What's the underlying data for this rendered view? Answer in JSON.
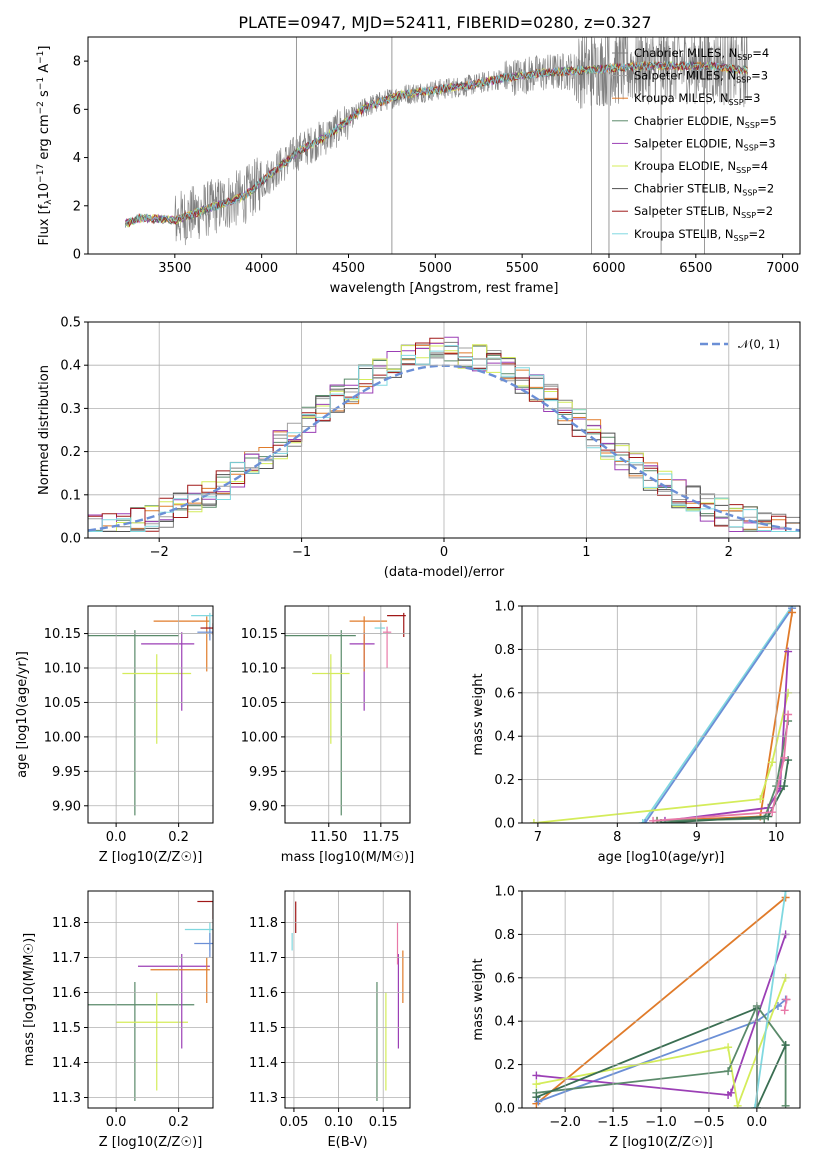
{
  "figure": {
    "title": "PLATE=0947, MJD=52411, FIBERID=0280, z=0.327"
  },
  "colors": {
    "data": "#808080",
    "models": [
      "#7f7f7f",
      "#a0a0a0",
      "#e07b2a",
      "#5a8a6a",
      "#9b3fb5",
      "#d4ec5a",
      "#505050",
      "#a01818",
      "#80d8e0",
      "#6b8fd6",
      "#e879a8",
      "#3a6e52"
    ]
  },
  "chart_data": [
    {
      "id": "spectrum",
      "type": "line",
      "title": "PLATE=0947, MJD=52411, FIBERID=0280, z=0.327",
      "xlabel": "wavelength [Angstrom, rest frame]",
      "ylabel": "Flux [f_λ 10^-17 erg cm^-2 s^-1 A^-1]",
      "xlim": [
        3000,
        7100
      ],
      "ylim": [
        0,
        9
      ],
      "xticks": [
        "3500",
        "4000",
        "4500",
        "5000",
        "5500",
        "6000",
        "6500",
        "7000"
      ],
      "yticks": [
        "0",
        "2",
        "4",
        "6",
        "8"
      ],
      "grid": false,
      "legend_position": "top-right",
      "spectrum_shape": {
        "x": [
          3200,
          3300,
          3500,
          3700,
          3900,
          4000,
          4200,
          4400,
          4600,
          4800,
          5000,
          5200,
          5400,
          5600,
          5800,
          6000,
          6200,
          6400,
          6600,
          6800
        ],
        "y": [
          1.2,
          1.5,
          1.4,
          1.9,
          2.4,
          3.0,
          4.2,
          5.0,
          6.1,
          6.6,
          6.8,
          7.0,
          7.3,
          7.5,
          7.6,
          7.7,
          7.8,
          7.8,
          7.8,
          7.6
        ]
      },
      "series": [
        {
          "name": "Chabrier MILES, N_SSP=4"
        },
        {
          "name": "Salpeter MILES, N_SSP=3"
        },
        {
          "name": "Kroupa MILES, N_SSP=3"
        },
        {
          "name": "Chabrier ELODIE, N_SSP=5"
        },
        {
          "name": "Salpeter ELODIE, N_SSP=3"
        },
        {
          "name": "Kroupa ELODIE, N_SSP=4"
        },
        {
          "name": "Chabrier STELIB, N_SSP=2"
        },
        {
          "name": "Salpeter STELIB, N_SSP=2"
        },
        {
          "name": "Kroupa STELIB, N_SSP=2"
        }
      ]
    },
    {
      "id": "residuals",
      "type": "bar",
      "xlabel": "(data-model)/error",
      "ylabel": "Normed distribution",
      "xlim": [
        -2.5,
        2.5
      ],
      "ylim": [
        0,
        0.5
      ],
      "xticks": [
        "−2",
        "−1",
        "0",
        "1",
        "2"
      ],
      "yticks": [
        "0.0",
        "0.1",
        "0.2",
        "0.3",
        "0.4",
        "0.5"
      ],
      "grid": true,
      "legend_position": "top-right",
      "legend": "𝒩(0, 1)",
      "bin_width": 0.1
    },
    {
      "id": "age-vs-Z",
      "type": "scatter",
      "xlabel": "Z [log10(Z/Z☉)]",
      "ylabel": "age  [log10(age/yr)]",
      "xlim": [
        -0.09,
        0.31
      ],
      "ylim": [
        9.875,
        10.19
      ],
      "xticks": [
        "0.0",
        "0.2"
      ],
      "yticks": [
        "9.90",
        "9.95",
        "10.00",
        "10.05",
        "10.10",
        "10.15"
      ],
      "points": [
        {
          "x": 0.06,
          "xlo": -0.09,
          "xhi": 0.2,
          "y": 10.147,
          "ylo": 9.886,
          "yhi": 10.155,
          "c": 3
        },
        {
          "x": 0.13,
          "xlo": 0.02,
          "xhi": 0.24,
          "y": 10.092,
          "ylo": 9.99,
          "yhi": 10.12,
          "c": 5
        },
        {
          "x": 0.21,
          "xlo": 0.08,
          "xhi": 0.25,
          "y": 10.135,
          "ylo": 10.038,
          "yhi": 10.152,
          "c": 4
        },
        {
          "x": 0.29,
          "xlo": 0.12,
          "xhi": 0.3,
          "y": 10.168,
          "ylo": 10.095,
          "yhi": 10.175,
          "c": 2
        },
        {
          "x": 0.3,
          "xlo": 0.24,
          "xhi": 0.31,
          "y": 10.176,
          "ylo": 10.145,
          "yhi": 10.18,
          "c": 8
        },
        {
          "x": 0.3,
          "xlo": 0.26,
          "xhi": 0.31,
          "y": 10.152,
          "ylo": 10.14,
          "yhi": 10.16,
          "c": 9
        },
        {
          "x": 0.31,
          "xlo": 0.27,
          "xhi": 0.31,
          "y": 10.158,
          "ylo": 10.148,
          "yhi": 10.165,
          "c": 7
        }
      ]
    },
    {
      "id": "age-vs-mass",
      "type": "scatter",
      "xlabel": "mass [log10(M/M☉)]",
      "ylabel": "",
      "xlim": [
        11.29,
        11.89
      ],
      "ylim": [
        9.875,
        10.19
      ],
      "xticks": [
        "11.50",
        "11.75"
      ],
      "yticks": [
        "9.90",
        "9.95",
        "10.00",
        "10.05",
        "10.10",
        "10.15"
      ],
      "points": [
        {
          "x": 11.56,
          "xlo": 11.29,
          "xhi": 11.63,
          "y": 10.147,
          "ylo": 9.886,
          "yhi": 10.155,
          "c": 3
        },
        {
          "x": 11.51,
          "xlo": 11.42,
          "xhi": 11.6,
          "y": 10.092,
          "ylo": 9.99,
          "yhi": 10.12,
          "c": 5
        },
        {
          "x": 11.67,
          "xlo": 11.6,
          "xhi": 11.72,
          "y": 10.135,
          "ylo": 10.038,
          "yhi": 10.152,
          "c": 4
        },
        {
          "x": 11.67,
          "xlo": 11.6,
          "xhi": 11.78,
          "y": 10.168,
          "ylo": 10.095,
          "yhi": 10.175,
          "c": 2
        },
        {
          "x": 11.86,
          "xlo": 11.78,
          "xhi": 11.87,
          "y": 10.176,
          "ylo": 10.145,
          "yhi": 10.18,
          "c": 7
        },
        {
          "x": 11.78,
          "xlo": 11.76,
          "xhi": 11.8,
          "y": 10.152,
          "ylo": 10.1,
          "yhi": 10.16,
          "c": 10
        },
        {
          "x": 11.75,
          "xlo": 11.72,
          "xhi": 11.77,
          "y": 10.158,
          "ylo": 10.148,
          "yhi": 10.165,
          "c": 8
        }
      ]
    },
    {
      "id": "weight-vs-age",
      "type": "line",
      "xlabel": "age  [log10(age/yr)]",
      "ylabel": "mass weight",
      "xlim": [
        6.8,
        10.3
      ],
      "ylim": [
        0,
        1
      ],
      "xticks": [
        "7",
        "8",
        "9",
        "10"
      ],
      "yticks": [
        "0.0",
        "0.2",
        "0.4",
        "0.6",
        "0.8",
        "1.0"
      ],
      "grid": true,
      "series": [
        {
          "c": 8,
          "x": [
            8.32,
            10.2
          ],
          "y": [
            0.0,
            1.0
          ]
        },
        {
          "c": 9,
          "x": [
            8.35,
            10.2
          ],
          "y": [
            0.0,
            0.99
          ]
        },
        {
          "c": 2,
          "x": [
            8.5,
            9.8,
            10.2
          ],
          "y": [
            0.01,
            0.03,
            0.97
          ]
        },
        {
          "c": 5,
          "x": [
            6.95,
            9.8,
            9.95,
            10.15
          ],
          "y": [
            0.0,
            0.11,
            0.28,
            0.6
          ]
        },
        {
          "c": 4,
          "x": [
            8.6,
            9.9,
            10.05,
            10.15
          ],
          "y": [
            0.01,
            0.07,
            0.16,
            0.79
          ]
        },
        {
          "c": 3,
          "x": [
            8.5,
            9.85,
            10.0,
            10.15
          ],
          "y": [
            0.01,
            0.02,
            0.17,
            0.47
          ]
        },
        {
          "c": 11,
          "x": [
            8.55,
            9.9,
            10.1,
            10.15
          ],
          "y": [
            0.0,
            0.03,
            0.17,
            0.29
          ]
        },
        {
          "c": 10,
          "x": [
            8.45,
            9.95,
            10.1,
            10.15
          ],
          "y": [
            0.01,
            0.05,
            0.3,
            0.5
          ]
        }
      ]
    },
    {
      "id": "mass-vs-Z",
      "type": "scatter",
      "xlabel": "Z [log10(Z/Z☉)]",
      "ylabel": "mass [log10(M/M☉)]",
      "xlim": [
        -0.09,
        0.31
      ],
      "ylim": [
        11.27,
        11.89
      ],
      "xticks": [
        "0.0",
        "0.2"
      ],
      "yticks": [
        "11.3",
        "11.4",
        "11.5",
        "11.6",
        "11.7",
        "11.8"
      ],
      "points": [
        {
          "x": 0.06,
          "xlo": -0.09,
          "xhi": 0.25,
          "y": 11.565,
          "ylo": 11.29,
          "yhi": 11.63,
          "c": 3
        },
        {
          "x": 0.13,
          "xlo": 0.0,
          "xhi": 0.23,
          "y": 11.515,
          "ylo": 11.32,
          "yhi": 11.6,
          "c": 5
        },
        {
          "x": 0.21,
          "xlo": 0.07,
          "xhi": 0.3,
          "y": 11.675,
          "ylo": 11.44,
          "yhi": 11.71,
          "c": 4
        },
        {
          "x": 0.29,
          "xlo": 0.11,
          "xhi": 0.3,
          "y": 11.665,
          "ylo": 11.57,
          "yhi": 11.7,
          "c": 2
        },
        {
          "x": 0.3,
          "xlo": 0.22,
          "xhi": 0.31,
          "y": 11.78,
          "ylo": 11.72,
          "yhi": 11.8,
          "c": 8
        },
        {
          "x": 0.31,
          "xlo": 0.26,
          "xhi": 0.31,
          "y": 11.86,
          "ylo": 11.81,
          "yhi": 11.86,
          "c": 7
        },
        {
          "x": 0.3,
          "xlo": 0.25,
          "xhi": 0.31,
          "y": 11.74,
          "ylo": 11.7,
          "yhi": 11.77,
          "c": 9
        }
      ]
    },
    {
      "id": "mass-vs-EBV",
      "type": "scatter",
      "xlabel": "E(B-V)",
      "ylabel": "",
      "xlim": [
        0.04,
        0.18
      ],
      "ylim": [
        11.27,
        11.89
      ],
      "xticks": [
        "0.05",
        "0.10",
        "0.15"
      ],
      "yticks": [
        "11.3",
        "11.4",
        "11.5",
        "11.6",
        "11.7",
        "11.8"
      ],
      "points": [
        {
          "x": 0.143,
          "y": 11.565,
          "ylo": 11.29,
          "yhi": 11.63,
          "c": 3
        },
        {
          "x": 0.153,
          "y": 11.515,
          "ylo": 11.32,
          "yhi": 11.6,
          "c": 5
        },
        {
          "x": 0.167,
          "y": 11.675,
          "ylo": 11.44,
          "yhi": 11.71,
          "c": 4
        },
        {
          "x": 0.172,
          "y": 11.665,
          "ylo": 11.57,
          "yhi": 11.72,
          "c": 2
        },
        {
          "x": 0.166,
          "y": 11.74,
          "ylo": 11.68,
          "yhi": 11.8,
          "c": 10
        },
        {
          "x": 0.052,
          "y": 11.82,
          "ylo": 11.77,
          "yhi": 11.86,
          "c": 7
        },
        {
          "x": 0.048,
          "y": 11.74,
          "ylo": 11.72,
          "yhi": 11.77,
          "c": 8
        }
      ]
    },
    {
      "id": "weight-vs-Z",
      "type": "line",
      "xlabel": "Z [log10(Z/Z☉)]",
      "ylabel": "mass weight",
      "xlim": [
        -2.45,
        0.45
      ],
      "ylim": [
        0,
        1
      ],
      "xticks": [
        "−2.0",
        "−1.5",
        "−1.0",
        "−0.5",
        "0.0"
      ],
      "yticks": [
        "0.0",
        "0.2",
        "0.4",
        "0.6",
        "0.8",
        "1.0"
      ],
      "grid": true,
      "series": [
        {
          "c": 2,
          "x": [
            -2.3,
            0.3
          ],
          "y": [
            0.02,
            0.97
          ]
        },
        {
          "c": 9,
          "x": [
            -2.28,
            0.0,
            0.22,
            0.3
          ],
          "y": [
            0.03,
            0.4,
            0.47,
            0.5
          ]
        },
        {
          "c": 4,
          "x": [
            -2.3,
            -0.3,
            -0.27,
            0.3
          ],
          "y": [
            0.15,
            0.06,
            0.07,
            0.8
          ]
        },
        {
          "c": 5,
          "x": [
            -2.3,
            -0.3,
            -0.2,
            0.3
          ],
          "y": [
            0.11,
            0.28,
            0.01,
            0.6
          ]
        },
        {
          "c": 3,
          "x": [
            -2.3,
            -0.3,
            0.0,
            0.3,
            0.3
          ],
          "y": [
            0.07,
            0.17,
            0.47,
            0.29,
            0.01
          ]
        },
        {
          "c": 11,
          "x": [
            -2.3,
            0.0,
            0.0,
            0.3
          ],
          "y": [
            0.05,
            0.46,
            0.0,
            0.29
          ]
        },
        {
          "c": 8,
          "x": [
            -0.02,
            0.3
          ],
          "y": [
            0.0,
            1.0
          ]
        },
        {
          "c": 10,
          "x": [
            0.29,
            0.31
          ],
          "y": [
            0.45,
            0.5
          ]
        }
      ]
    }
  ]
}
